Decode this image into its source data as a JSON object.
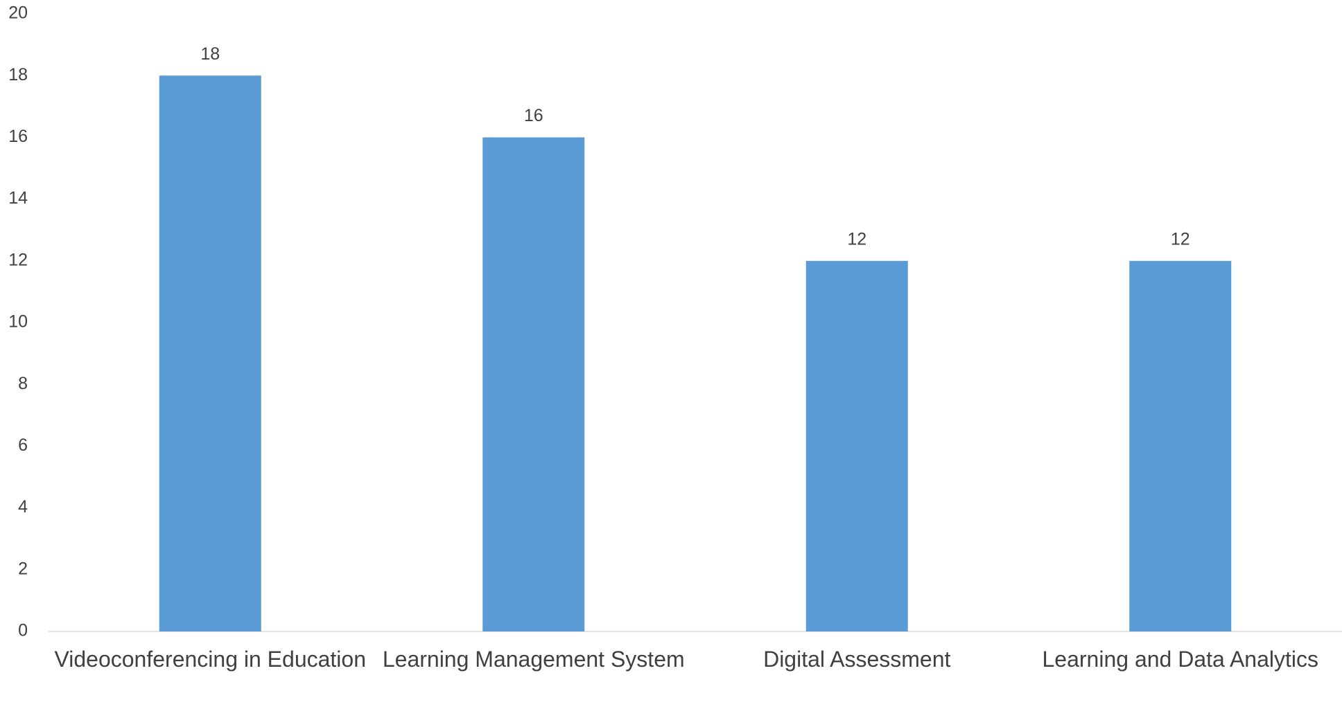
{
  "chart_data": {
    "type": "bar",
    "categories": [
      "Videoconferencing in Education",
      "Learning Management System",
      "Digital Assessment",
      "Learning and Data Analytics"
    ],
    "values": [
      18,
      16,
      12,
      12
    ],
    "color": "#5b9bd5",
    "ylim": [
      0,
      20
    ],
    "yticks": [
      0,
      2,
      4,
      6,
      8,
      10,
      12,
      14,
      16,
      18,
      20
    ],
    "grid": false,
    "data_labels": true
  }
}
